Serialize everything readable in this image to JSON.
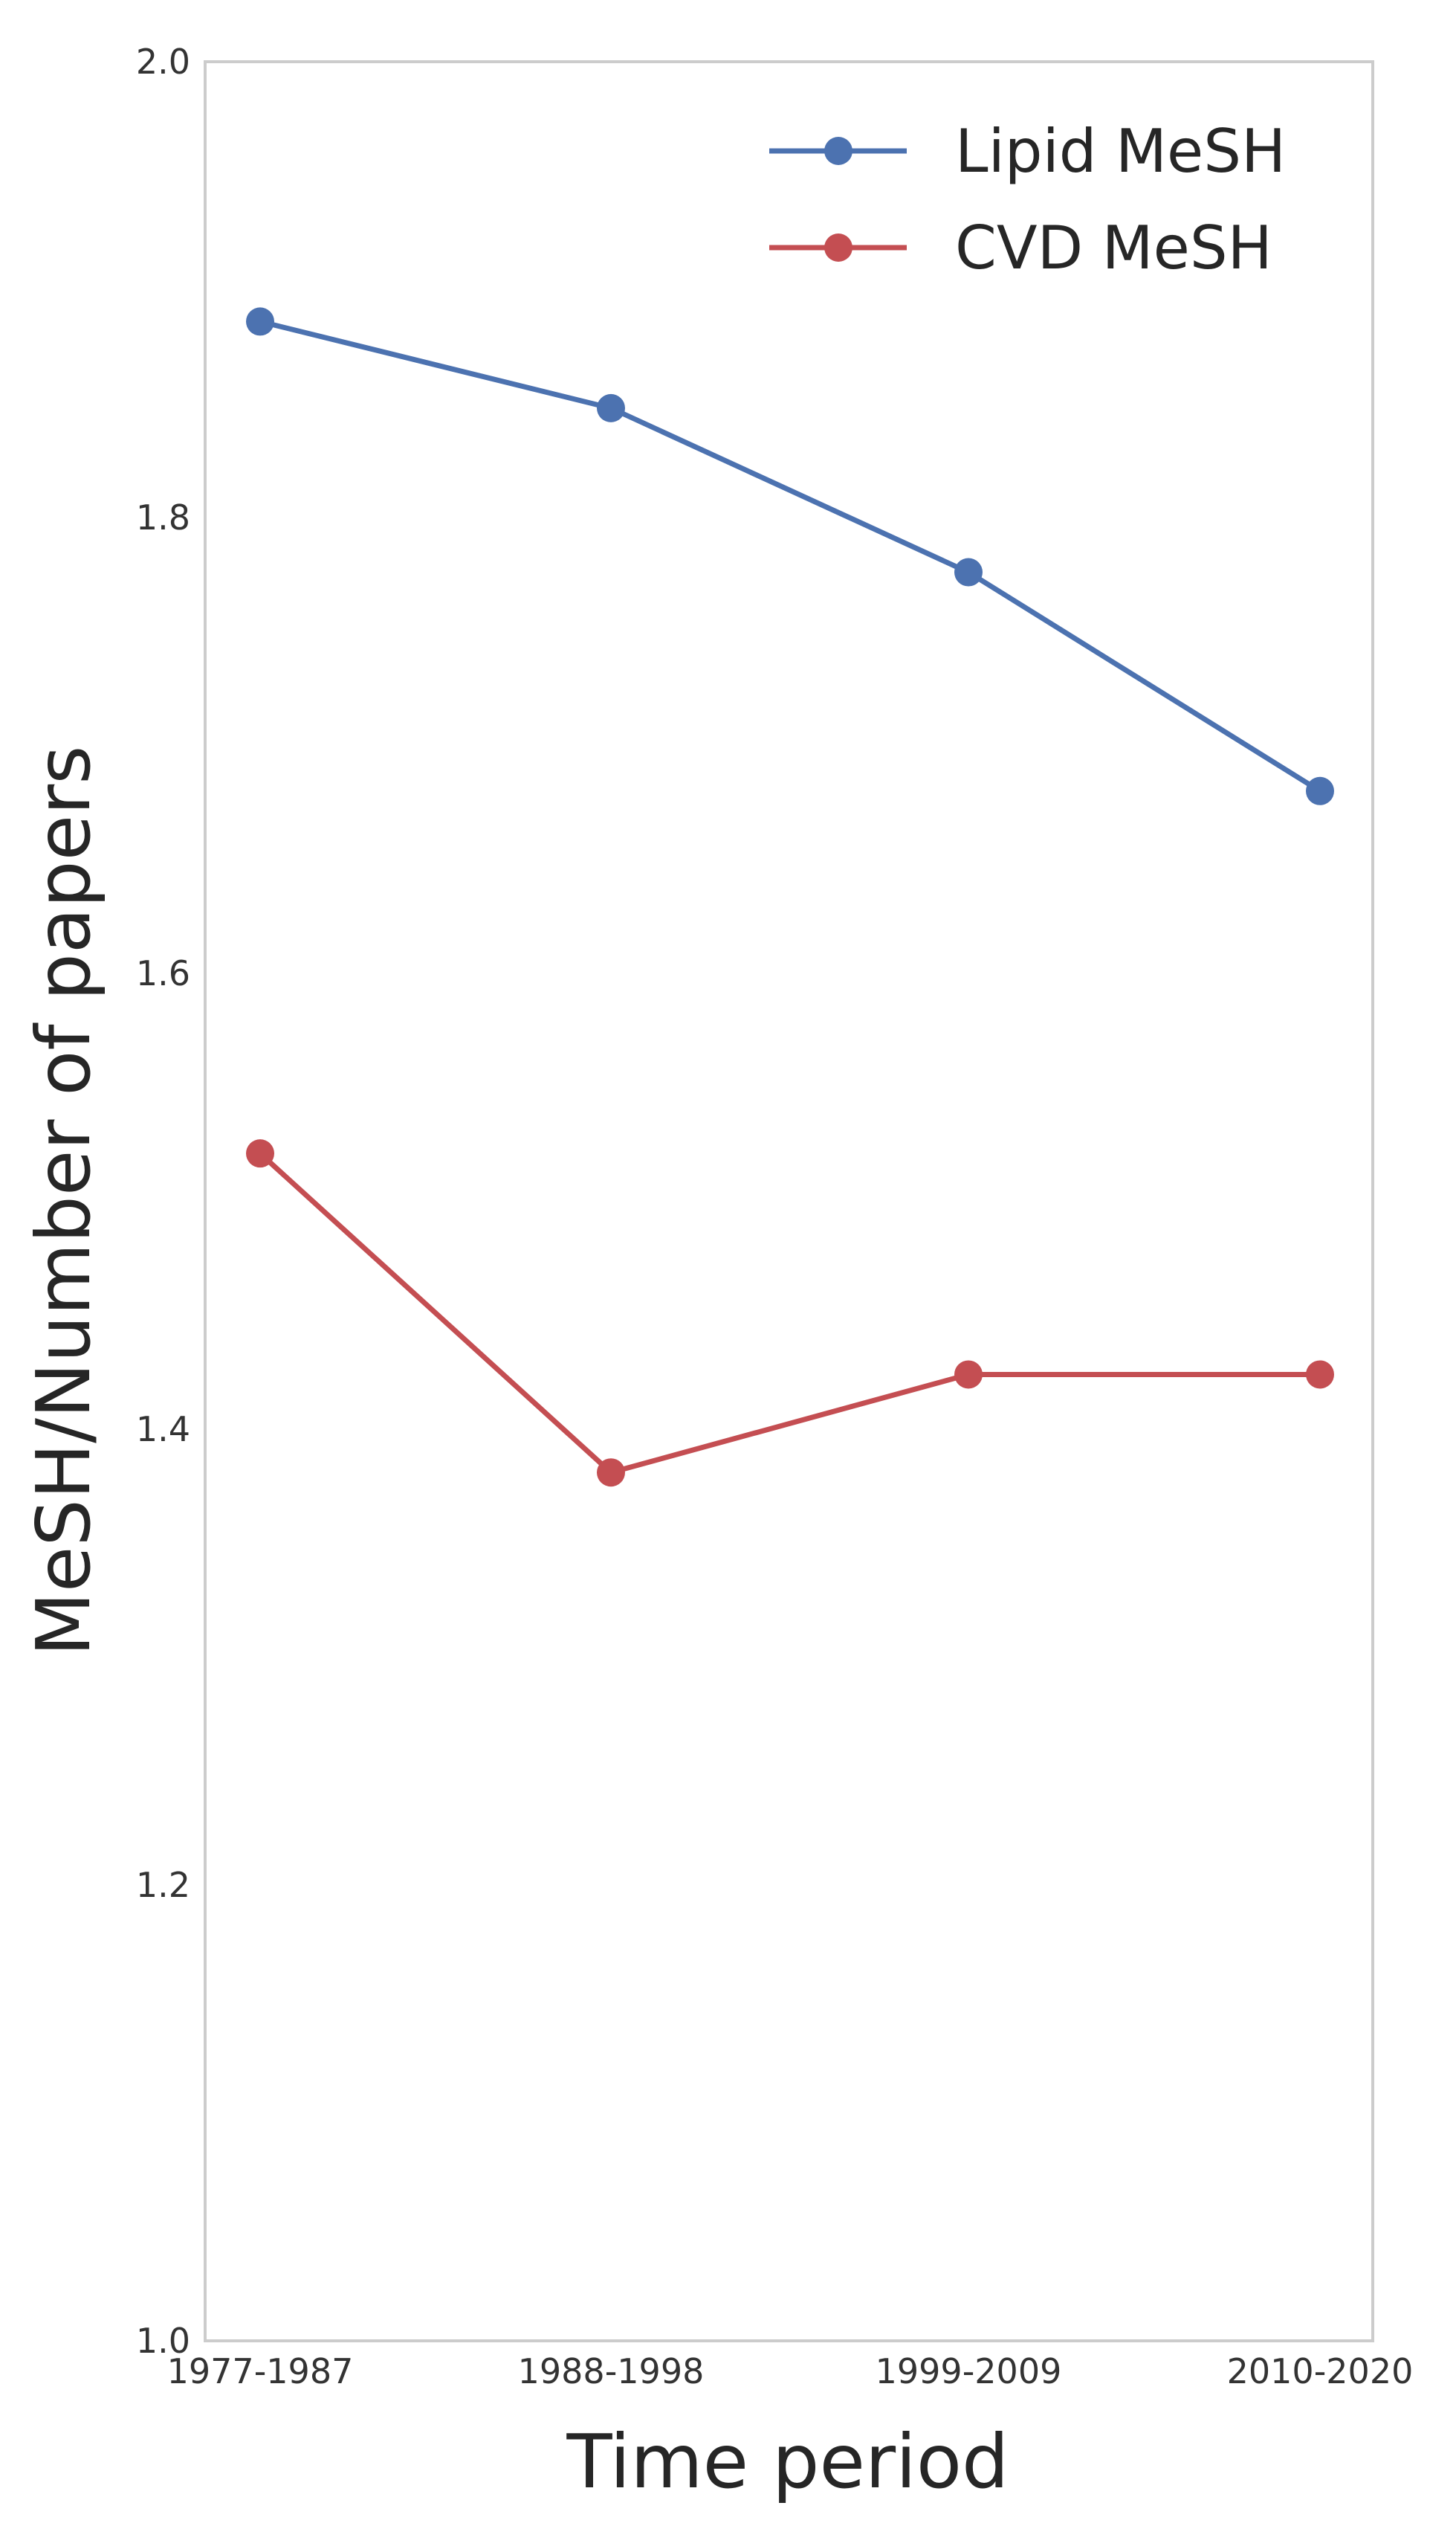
{
  "chart_data": {
    "type": "line",
    "title": "",
    "xlabel": "Time period",
    "ylabel": "MeSH/Number of papers",
    "categories": [
      "1977-1987",
      "1988-1998",
      "1999-2009",
      "2010-2020"
    ],
    "ylim": [
      1.0,
      2.0
    ],
    "yticks": [
      "1.0",
      "1.2",
      "1.4",
      "1.6",
      "1.8",
      "2.0"
    ],
    "grid": false,
    "legend_position": "top-right",
    "series": [
      {
        "name": "Lipid MeSH",
        "color": "#4c72b0",
        "values": [
          1.886,
          1.848,
          1.776,
          1.68
        ]
      },
      {
        "name": "CVD MeSH",
        "color": "#c44e52",
        "values": [
          1.521,
          1.381,
          1.424,
          1.424
        ]
      }
    ]
  }
}
